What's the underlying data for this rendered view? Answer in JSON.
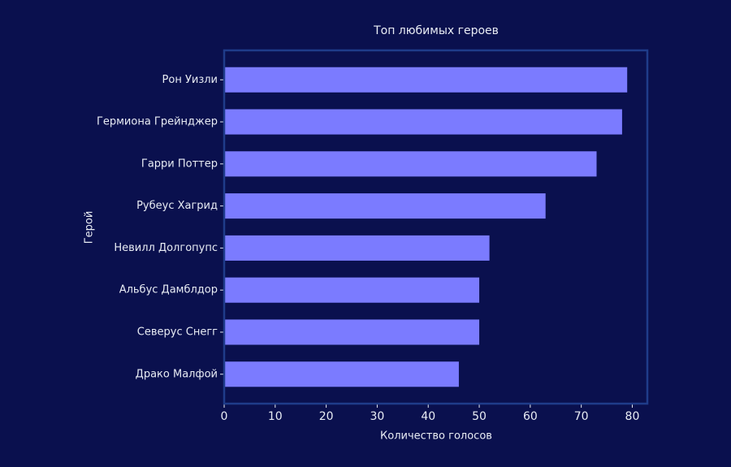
{
  "chart_data": {
    "type": "barh",
    "title": "Топ любимых героев",
    "xlabel": "Количество голосов",
    "ylabel": "Герой",
    "categories": [
      "Рон Уизли",
      "Гермиона Грейнджер",
      "Гарри Поттер",
      "Рубеус Хагрид",
      "Невилл Долгопупс",
      "Альбус Дамблдор",
      "Северус Снегг",
      "Драко Малфой"
    ],
    "values": [
      79,
      78,
      73,
      63,
      52,
      50,
      50,
      46
    ],
    "color": "#7b7bff",
    "xlim": [
      0,
      82.95
    ],
    "xticks": [
      0,
      10,
      20,
      30,
      40,
      50,
      60,
      70,
      80
    ]
  }
}
